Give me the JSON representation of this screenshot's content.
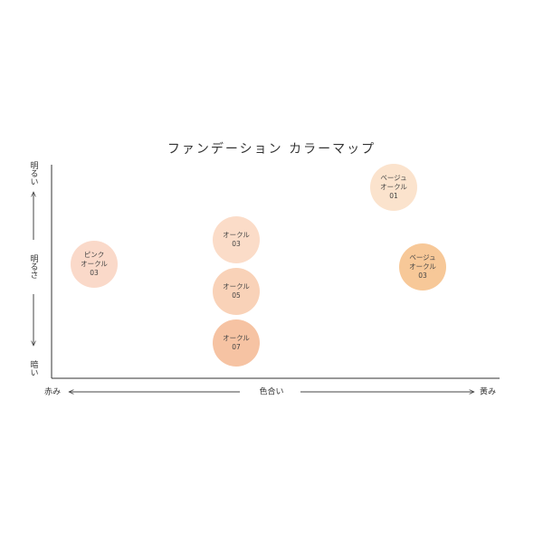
{
  "title": "ファンデーション カラーマップ",
  "y_axis": {
    "top": "明るい",
    "title": "明るさ",
    "bottom": "暗い"
  },
  "x_axis": {
    "left": "赤み",
    "title": "色合い",
    "right": "黄み"
  },
  "nodes": [
    {
      "lines": [
        "ベージュ",
        "オークル",
        "01"
      ],
      "color": "#fbe3cd"
    },
    {
      "lines": [
        "ピンク",
        "オークル",
        "03"
      ],
      "color": "#fad9c9"
    },
    {
      "lines": [
        "オークル",
        "03"
      ],
      "color": "#fbdcc8"
    },
    {
      "lines": [
        "オークル",
        "05"
      ],
      "color": "#f9d2b8"
    },
    {
      "lines": [
        "オークル",
        "07"
      ],
      "color": "#f6c3a3"
    },
    {
      "lines": [
        "ベージュ",
        "オークル",
        "03"
      ],
      "color": "#f7c898"
    }
  ]
}
